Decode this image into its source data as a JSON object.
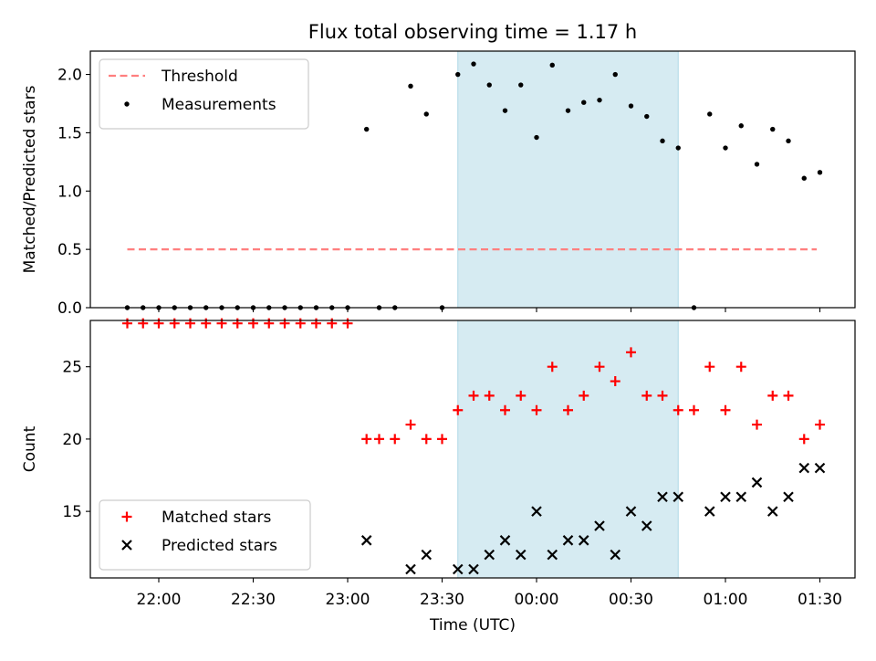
{
  "title": "Flux total observing time = 1.17 h",
  "xlabel": "Time (UTC)",
  "x_ticks": [
    "22:00",
    "22:30",
    "23:00",
    "23:30",
    "00:00",
    "00:30",
    "01:00",
    "01:30"
  ],
  "shaded_region_color": "#add8e6",
  "chart_data": [
    {
      "type": "scatter",
      "ylabel": "Matched/Predicted stars",
      "ylim": [
        0,
        2.2
      ],
      "y_ticks": [
        "0.0",
        "0.5",
        "1.0",
        "1.5",
        "2.0"
      ],
      "shaded_interval": [
        "23:35",
        "00:45"
      ],
      "legend_placement": "upper-left",
      "series": [
        {
          "name": "Threshold",
          "kind": "dashed-line",
          "color": "#ff7f7f",
          "x": [
            "21:50",
            "01:29"
          ],
          "y": [
            0.5,
            0.5
          ]
        },
        {
          "name": "Measurements",
          "kind": "dot",
          "color": "#000000",
          "x": [
            "21:50",
            "21:55",
            "22:00",
            "22:05",
            "22:10",
            "22:15",
            "22:20",
            "22:25",
            "22:30",
            "22:35",
            "22:40",
            "22:45",
            "22:50",
            "22:55",
            "23:00",
            "23:06",
            "23:10",
            "23:15",
            "23:20",
            "23:25",
            "23:30",
            "23:35",
            "23:40",
            "23:45",
            "23:50",
            "23:55",
            "00:00",
            "00:05",
            "00:10",
            "00:15",
            "00:20",
            "00:25",
            "00:30",
            "00:35",
            "00:40",
            "00:45",
            "00:50",
            "00:55",
            "01:00",
            "01:05",
            "01:10",
            "01:15",
            "01:20",
            "01:25",
            "01:30"
          ],
          "y": [
            0,
            0,
            0,
            0,
            0,
            0,
            0,
            0,
            0,
            0,
            0,
            0,
            0,
            0,
            0,
            1.53,
            0,
            0,
            1.9,
            1.66,
            0,
            2.0,
            2.09,
            1.91,
            1.69,
            1.91,
            1.46,
            2.08,
            1.69,
            1.76,
            1.78,
            2.0,
            1.73,
            1.64,
            1.43,
            1.37,
            0,
            1.66,
            1.37,
            1.56,
            1.23,
            1.53,
            1.43,
            1.11,
            1.16
          ]
        }
      ]
    },
    {
      "type": "scatter",
      "ylabel": "Count",
      "ylim": [
        10.4,
        28.2
      ],
      "y_ticks": [
        "15",
        "20",
        "25"
      ],
      "shaded_interval": [
        "23:35",
        "00:45"
      ],
      "legend_placement": "lower-left",
      "series": [
        {
          "name": "Matched stars",
          "kind": "plus",
          "color": "#ff0000",
          "x": [
            "21:50",
            "21:55",
            "22:00",
            "22:05",
            "22:10",
            "22:15",
            "22:20",
            "22:25",
            "22:30",
            "22:35",
            "22:40",
            "22:45",
            "22:50",
            "22:55",
            "23:00",
            "23:06",
            "23:10",
            "23:15",
            "23:20",
            "23:25",
            "23:30",
            "23:35",
            "23:40",
            "23:45",
            "23:50",
            "23:55",
            "00:00",
            "00:05",
            "00:10",
            "00:15",
            "00:20",
            "00:25",
            "00:30",
            "00:35",
            "00:40",
            "00:45",
            "00:50",
            "00:55",
            "01:00",
            "01:05",
            "01:10",
            "01:15",
            "01:20",
            "01:25",
            "01:30"
          ],
          "y": [
            28,
            28,
            28,
            28,
            28,
            28,
            28,
            28,
            28,
            28,
            28,
            28,
            28,
            28,
            28,
            20,
            20,
            20,
            21,
            20,
            20,
            22,
            23,
            23,
            22,
            23,
            22,
            25,
            22,
            23,
            25,
            24,
            26,
            23,
            23,
            22,
            22,
            25,
            22,
            25,
            21,
            23,
            23,
            20,
            21
          ]
        },
        {
          "name": "Predicted stars",
          "kind": "x",
          "color": "#000000",
          "x": [
            "23:06",
            "23:20",
            "23:25",
            "23:35",
            "23:40",
            "23:45",
            "23:50",
            "23:55",
            "00:00",
            "00:05",
            "00:10",
            "00:15",
            "00:20",
            "00:25",
            "00:30",
            "00:35",
            "00:40",
            "00:45",
            "00:55",
            "01:00",
            "01:05",
            "01:10",
            "01:15",
            "01:20",
            "01:25",
            "01:30"
          ],
          "y": [
            13,
            11,
            12,
            11,
            11,
            12,
            13,
            12,
            15,
            12,
            13,
            13,
            14,
            12,
            15,
            14,
            16,
            16,
            15,
            16,
            16,
            17,
            15,
            16,
            18,
            18
          ]
        }
      ]
    }
  ]
}
